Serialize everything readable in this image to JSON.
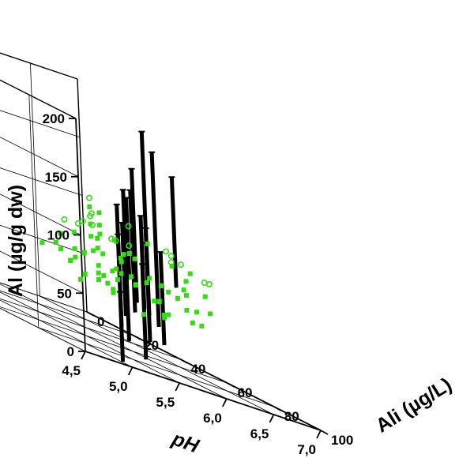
{
  "chart_data": {
    "type": "scatter",
    "projection": "3d",
    "grid": true,
    "xlabel": "pH",
    "ylabel": "Ali (µg/L)",
    "zlabel": "Al (µg/g dw)",
    "x_ticks": [
      "4,5",
      "5,0",
      "5,5",
      "6,0",
      "6,5",
      "7,0"
    ],
    "y_ticks": [
      "0",
      "20",
      "40",
      "60",
      "80",
      "100"
    ],
    "z_ticks": [
      "0",
      "50",
      "100",
      "150",
      "200"
    ],
    "xlim": [
      4.5,
      7.0
    ],
    "ylim": [
      0,
      100
    ],
    "zlim": [
      0,
      200
    ],
    "colors": {
      "dark_series": "#000000",
      "green_series": "#33dd11"
    },
    "series": [
      {
        "marker": "vertical-bar",
        "color": "#000000",
        "points": [
          {
            "x": 4.9,
            "y": 100,
            "z": [
              2,
              62
            ]
          },
          {
            "x": 5.0,
            "y": 96,
            "z": [
              35,
              110
            ]
          },
          {
            "x": 5.05,
            "y": 94,
            "z": [
              30,
              135
            ]
          },
          {
            "x": 5.1,
            "y": 95,
            "z": [
              20,
              150
            ]
          },
          {
            "x": 5.15,
            "y": 92,
            "z": [
              40,
              120
            ]
          },
          {
            "x": 5.2,
            "y": 98,
            "z": [
              10,
              92
            ]
          },
          {
            "x": 5.25,
            "y": 93,
            "z": [
              55,
              170
            ]
          },
          {
            "x": 5.3,
            "y": 90,
            "z": [
              45,
              150
            ]
          },
          {
            "x": 5.35,
            "y": 94,
            "z": [
              25,
              110
            ]
          },
          {
            "x": 5.4,
            "y": 92,
            "z": [
              70,
              205
            ]
          },
          {
            "x": 5.45,
            "y": 88,
            "z": [
              50,
              130
            ]
          },
          {
            "x": 5.5,
            "y": 92,
            "z": [
              40,
              190
            ]
          },
          {
            "x": 5.55,
            "y": 86,
            "z": [
              45,
              120
            ]
          },
          {
            "x": 5.6,
            "y": 90,
            "z": [
              25,
              105
            ]
          },
          {
            "x": 5.4,
            "y": 84,
            "z": [
              70,
              140
            ]
          },
          {
            "x": 6.0,
            "y": 80,
            "z": [
              75,
              170
            ]
          }
        ]
      },
      {
        "marker": "filled-square",
        "color": "#33dd11",
        "points": [
          {
            "x": 5.3,
            "y": 76,
            "z": 98
          },
          {
            "x": 5.35,
            "y": 70,
            "z": 102
          },
          {
            "x": 5.4,
            "y": 72,
            "z": 115
          },
          {
            "x": 5.45,
            "y": 66,
            "z": 90
          },
          {
            "x": 5.5,
            "y": 78,
            "z": 88
          },
          {
            "x": 5.2,
            "y": 80,
            "z": 107
          },
          {
            "x": 5.6,
            "y": 70,
            "z": 95
          },
          {
            "x": 5.25,
            "y": 74,
            "z": 118
          },
          {
            "x": 6.2,
            "y": 68,
            "z": 45
          },
          {
            "x": 6.25,
            "y": 60,
            "z": 50
          },
          {
            "x": 6.3,
            "y": 55,
            "z": 62
          },
          {
            "x": 6.35,
            "y": 70,
            "z": 55
          },
          {
            "x": 6.4,
            "y": 58,
            "z": 40
          },
          {
            "x": 6.45,
            "y": 65,
            "z": 70
          },
          {
            "x": 6.5,
            "y": 52,
            "z": 48
          },
          {
            "x": 6.55,
            "y": 62,
            "z": 65
          },
          {
            "x": 6.6,
            "y": 50,
            "z": 35
          },
          {
            "x": 6.65,
            "y": 68,
            "z": 58
          },
          {
            "x": 6.7,
            "y": 56,
            "z": 75
          },
          {
            "x": 6.75,
            "y": 60,
            "z": 42
          },
          {
            "x": 6.8,
            "y": 48,
            "z": 55
          },
          {
            "x": 6.85,
            "y": 58,
            "z": 68
          },
          {
            "x": 6.9,
            "y": 52,
            "z": 50
          },
          {
            "x": 6.3,
            "y": 48,
            "z": 80
          },
          {
            "x": 6.5,
            "y": 45,
            "z": 30
          },
          {
            "x": 6.6,
            "y": 62,
            "z": 85
          },
          {
            "x": 6.7,
            "y": 45,
            "z": 60
          },
          {
            "x": 6.4,
            "y": 52,
            "z": 95
          },
          {
            "x": 6.55,
            "y": 40,
            "z": 52
          },
          {
            "x": 6.75,
            "y": 42,
            "z": 45
          },
          {
            "x": 6.85,
            "y": 44,
            "z": 80
          },
          {
            "x": 6.95,
            "y": 48,
            "z": 38
          },
          {
            "x": 6.35,
            "y": 42,
            "z": 58
          },
          {
            "x": 6.45,
            "y": 38,
            "z": 70
          },
          {
            "x": 6.65,
            "y": 36,
            "z": 50
          },
          {
            "x": 6.2,
            "y": 46,
            "z": 62
          },
          {
            "x": 6.25,
            "y": 40,
            "z": 45
          },
          {
            "x": 6.8,
            "y": 36,
            "z": 60
          },
          {
            "x": 6.9,
            "y": 40,
            "z": 55
          },
          {
            "x": 6.7,
            "y": 34,
            "z": 72
          },
          {
            "x": 6.5,
            "y": 14,
            "z": 45
          },
          {
            "x": 6.55,
            "y": 8,
            "z": 50
          },
          {
            "x": 6.6,
            "y": 16,
            "z": 38
          },
          {
            "x": 6.65,
            "y": 10,
            "z": 55
          },
          {
            "x": 6.7,
            "y": 6,
            "z": 42
          },
          {
            "x": 6.75,
            "y": 14,
            "z": 60
          },
          {
            "x": 6.8,
            "y": 8,
            "z": 35
          },
          {
            "x": 6.85,
            "y": 12,
            "z": 48
          },
          {
            "x": 6.9,
            "y": 4,
            "z": 52
          },
          {
            "x": 6.95,
            "y": 10,
            "z": 40
          },
          {
            "x": 6.5,
            "y": 20,
            "z": 58
          },
          {
            "x": 6.6,
            "y": 22,
            "z": 45
          },
          {
            "x": 6.7,
            "y": 18,
            "z": 65
          },
          {
            "x": 6.8,
            "y": 20,
            "z": 50
          },
          {
            "x": 6.9,
            "y": 16,
            "z": 30
          },
          {
            "x": 7.0,
            "y": 8,
            "z": 58
          },
          {
            "x": 6.55,
            "y": 24,
            "z": 40
          },
          {
            "x": 6.65,
            "y": 4,
            "z": 62
          },
          {
            "x": 6.75,
            "y": 22,
            "z": 35
          },
          {
            "x": 6.85,
            "y": 2,
            "z": 45
          },
          {
            "x": 6.6,
            "y": 12,
            "z": 70
          },
          {
            "x": 6.8,
            "y": 14,
            "z": 72
          },
          {
            "x": 6.95,
            "y": 18,
            "z": 60
          },
          {
            "x": 6.7,
            "y": 10,
            "z": 30
          },
          {
            "x": 7.0,
            "y": 14,
            "z": 42
          },
          {
            "x": 6.45,
            "y": 10,
            "z": 55
          },
          {
            "x": 6.5,
            "y": 2,
            "z": 48
          },
          {
            "x": 6.9,
            "y": 24,
            "z": 52
          }
        ]
      },
      {
        "marker": "open-circle",
        "color": "#33dd11",
        "points": [
          {
            "x": 5.3,
            "y": 72,
            "z": 125
          },
          {
            "x": 5.4,
            "y": 68,
            "z": 108
          },
          {
            "x": 6.3,
            "y": 64,
            "z": 98
          },
          {
            "x": 6.5,
            "y": 58,
            "z": 88
          },
          {
            "x": 6.6,
            "y": 54,
            "z": 92
          },
          {
            "x": 6.7,
            "y": 64,
            "z": 82
          },
          {
            "x": 6.8,
            "y": 50,
            "z": 86
          },
          {
            "x": 6.4,
            "y": 44,
            "z": 102
          },
          {
            "x": 6.9,
            "y": 58,
            "z": 80
          },
          {
            "x": 6.2,
            "y": 52,
            "z": 88
          },
          {
            "x": 6.55,
            "y": 16,
            "z": 80
          },
          {
            "x": 6.7,
            "y": 12,
            "z": 82
          },
          {
            "x": 6.9,
            "y": 8,
            "z": 80
          },
          {
            "x": 6.6,
            "y": 20,
            "z": 94
          },
          {
            "x": 7.0,
            "y": 12,
            "z": 75
          },
          {
            "x": 6.8,
            "y": 22,
            "z": 78
          },
          {
            "x": 6.65,
            "y": 6,
            "z": 76
          }
        ]
      }
    ]
  }
}
